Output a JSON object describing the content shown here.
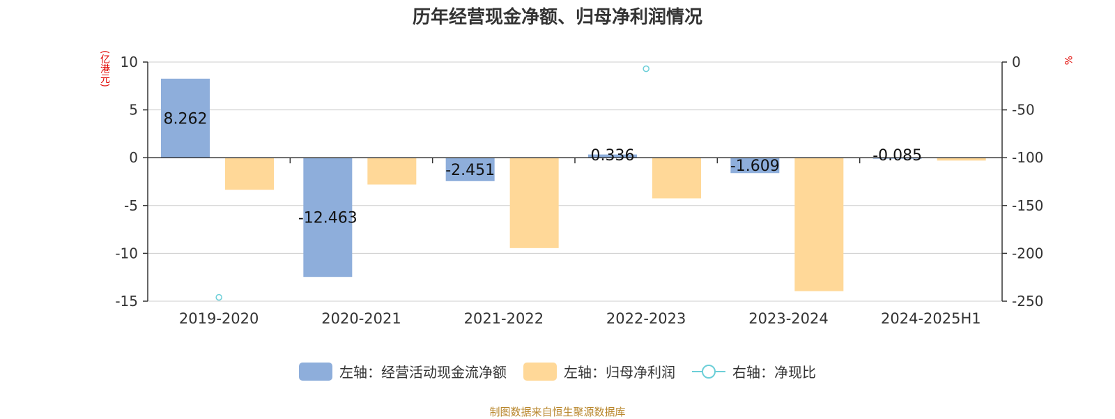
{
  "title": "历年经营现金净额、归母净利润情况",
  "left_unit": "(亿港元)",
  "right_unit": "%",
  "source": "制图数据来自恒生聚源数据库",
  "colors": {
    "bar1": "#8eaedb",
    "bar2": "#ffd898",
    "line": "#6ccfd8",
    "axis": "#333333",
    "grid": "#cccccc"
  },
  "legend": [
    {
      "label": "左轴：经营活动现金流净额",
      "kind": "bar",
      "color": "#8eaedb"
    },
    {
      "label": "左轴：归母净利润",
      "kind": "bar",
      "color": "#ffd898"
    },
    {
      "label": "右轴：净现比",
      "kind": "line",
      "color": "#6ccfd8"
    }
  ],
  "chart_data": {
    "type": "bar",
    "categories": [
      "2019-2020",
      "2020-2021",
      "2021-2022",
      "2022-2023",
      "2023-2024",
      "2024-2025H1"
    ],
    "series": [
      {
        "name": "左轴：经营活动现金流净额",
        "axis": "left",
        "type": "bar",
        "values": [
          8.262,
          -12.463,
          -2.451,
          0.336,
          -1.609,
          -0.085
        ],
        "labels": [
          "8.262",
          "-12.463",
          "-2.451",
          "0.336",
          "-1.609",
          "-0.085"
        ]
      },
      {
        "name": "左轴：归母净利润",
        "axis": "left",
        "type": "bar",
        "values": [
          -3.35,
          -2.8,
          -9.45,
          -4.25,
          -13.95,
          -0.3
        ]
      },
      {
        "name": "右轴：净现比",
        "axis": "right",
        "type": "scatter",
        "values": [
          -246,
          null,
          null,
          -7,
          null,
          null
        ]
      }
    ],
    "ylim_left": [
      -15,
      10
    ],
    "yticks_left": [
      10,
      5,
      0,
      -5,
      -10,
      -15
    ],
    "ylim_right": [
      -250,
      0
    ],
    "yticks_right": [
      0,
      -50,
      -100,
      -150,
      -200,
      -250
    ],
    "grid": true,
    "legend_position": "bottom"
  }
}
